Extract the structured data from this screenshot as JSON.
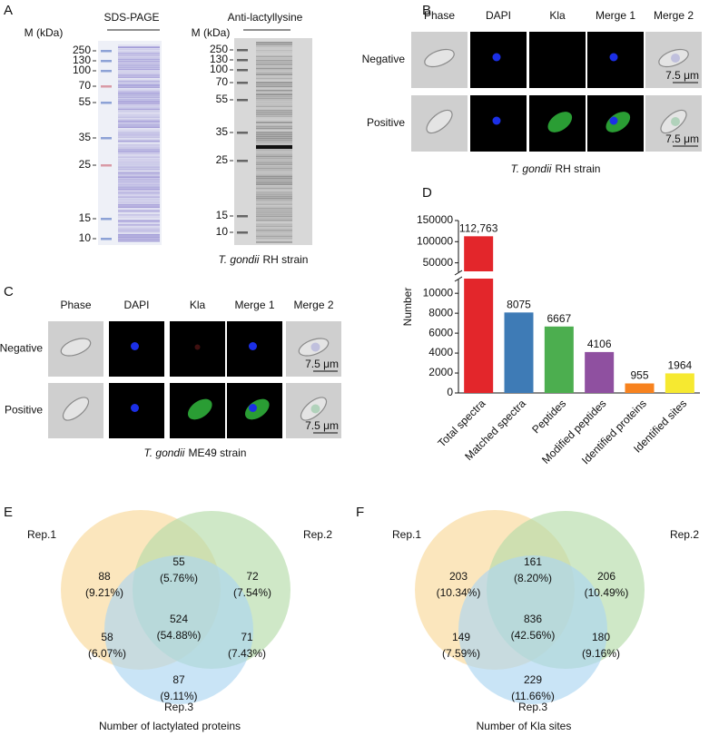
{
  "panel_a": {
    "label": "A",
    "gel_titles": [
      "SDS-PAGE",
      "Anti-lactyllysine"
    ],
    "marker_label": "M (kDa)",
    "markers": [
      250,
      130,
      100,
      70,
      55,
      35,
      25,
      15,
      10
    ],
    "caption": {
      "species": "T. gondii",
      "strain": "RH strain"
    }
  },
  "panel_b": {
    "label": "B",
    "columns": [
      "Phase",
      "DAPI",
      "Kla",
      "Merge 1",
      "Merge 2"
    ],
    "rows": [
      "Negative",
      "Positive"
    ],
    "scale_bar": "7.5 μm",
    "caption": {
      "species": "T. gondii",
      "strain": "RH strain"
    }
  },
  "panel_c": {
    "label": "C",
    "columns": [
      "Phase",
      "DAPI",
      "Kla",
      "Merge 1",
      "Merge 2"
    ],
    "rows": [
      "Negative",
      "Positive"
    ],
    "scale_bar": "7.5 μm",
    "caption": {
      "species": "T. gondii",
      "strain": "ME49 strain"
    }
  },
  "chart_data": {
    "type": "bar",
    "label": "D",
    "y_label": "Number",
    "categories": [
      "Total spectra",
      "Matched spectra",
      "Peptides",
      "Modified peptides",
      "Identified proteins",
      "Identified sites"
    ],
    "values": [
      112763,
      8075,
      6667,
      4106,
      955,
      1964
    ],
    "value_labels": [
      "112,763",
      "8075",
      "6667",
      "4106",
      "955",
      "1964"
    ],
    "colors": [
      "#e3262b",
      "#3e7bb6",
      "#4cae4f",
      "#8f50a0",
      "#f7821e",
      "#f6e930"
    ],
    "ylim": [
      0,
      150000
    ],
    "y_break": [
      11200,
      32000
    ],
    "yticks": [
      0,
      2000,
      4000,
      6000,
      8000,
      10000,
      50000,
      100000,
      150000
    ]
  },
  "panel_e": {
    "label": "E",
    "sets": [
      "Rep.1",
      "Rep.2",
      "Rep.3"
    ],
    "regions": [
      {
        "count": 88,
        "percent": "(9.21%)"
      },
      {
        "count": 55,
        "percent": "(5.76%)"
      },
      {
        "count": 72,
        "percent": "(7.54%)"
      },
      {
        "count": 524,
        "percent": "(54.88%)"
      },
      {
        "count": 58,
        "percent": "(6.07%)"
      },
      {
        "count": 71,
        "percent": "(7.43%)"
      },
      {
        "count": 87,
        "percent": "(9.11%)"
      }
    ],
    "caption": "Number of lactylated proteins"
  },
  "panel_f": {
    "label": "F",
    "sets": [
      "Rep.1",
      "Rep.2",
      "Rep.3"
    ],
    "regions": [
      {
        "count": 203,
        "percent": "(10.34%)"
      },
      {
        "count": 161,
        "percent": "(8.20%)"
      },
      {
        "count": 206,
        "percent": "(10.49%)"
      },
      {
        "count": 836,
        "percent": "(42.56%)"
      },
      {
        "count": 149,
        "percent": "(7.59%)"
      },
      {
        "count": 180,
        "percent": "(9.16%)"
      },
      {
        "count": 229,
        "percent": "(11.66%)"
      }
    ],
    "caption": "Number of Kla sites"
  }
}
